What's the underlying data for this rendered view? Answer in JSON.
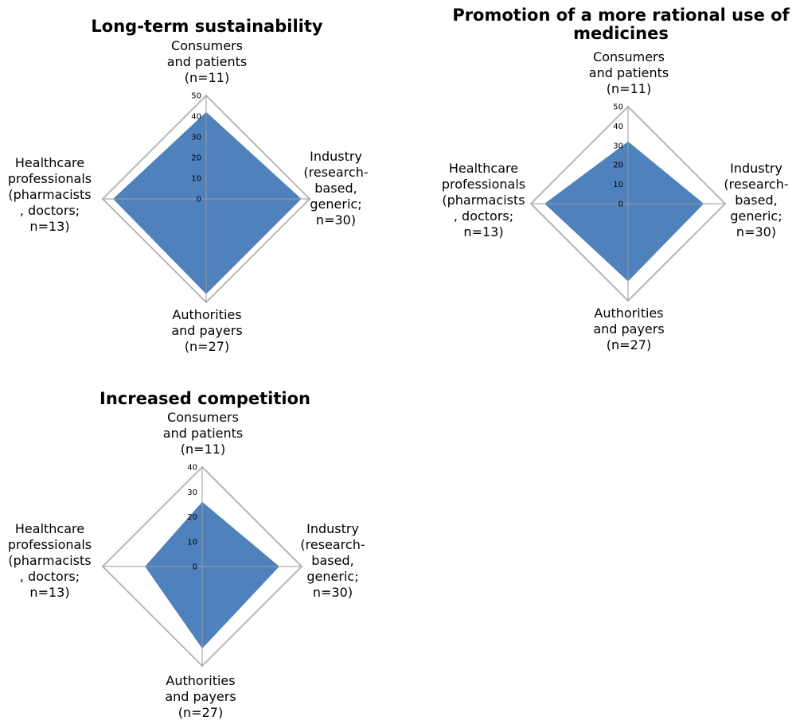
{
  "chart_data": [
    {
      "type": "radar",
      "title": [
        "Long-term sustainability"
      ],
      "axes": [
        [
          "Consumers",
          "and patients",
          "(n=11)"
        ],
        [
          "Industry",
          "(research-",
          "based,",
          "generic;",
          "n=30)"
        ],
        [
          "Authorities",
          "and payers",
          "(n=27)"
        ],
        [
          "Healthcare",
          "professionals",
          "(pharmacists",
          ", doctors;",
          "n=13)"
        ]
      ],
      "ticks": [
        "0",
        "10",
        "20",
        "30",
        "40",
        "50"
      ],
      "range": [
        0,
        50
      ],
      "series": [
        {
          "values": [
            42,
            46,
            46,
            45
          ],
          "color": "#4f81bd"
        }
      ]
    },
    {
      "type": "radar",
      "title": [
        "Promotion of a more rational use of",
        "medicines"
      ],
      "axes": [
        [
          "Consumers",
          "and patients",
          "(n=11)"
        ],
        [
          "Industry",
          "(research-",
          "based,",
          "generic;",
          "n=30)"
        ],
        [
          "Authorities",
          "and payers",
          "(n=27)"
        ],
        [
          "Healthcare",
          "professionals",
          "(pharmacists",
          ", doctors;",
          "n=13)"
        ]
      ],
      "ticks": [
        "0",
        "10",
        "20",
        "30",
        "40",
        "50"
      ],
      "range": [
        0,
        50
      ],
      "series": [
        {
          "values": [
            32,
            39,
            40,
            43
          ],
          "color": "#4f81bd"
        }
      ]
    },
    {
      "type": "radar",
      "title": [
        "Increased competition"
      ],
      "axes": [
        [
          "Consumers",
          "and patients",
          "(n=11)"
        ],
        [
          "Industry",
          "(research-",
          "based,",
          "generic;",
          "n=30)"
        ],
        [
          "Authorities",
          "and payers",
          "(n=27)"
        ],
        [
          "Healthcare",
          "professionals",
          "(pharmacists",
          ", doctors;",
          "n=13)"
        ]
      ],
      "ticks": [
        "0",
        "10",
        "20",
        "30",
        "40"
      ],
      "range": [
        0,
        40
      ],
      "series": [
        {
          "values": [
            26,
            31,
            33,
            23
          ],
          "color": "#4f81bd"
        }
      ]
    }
  ]
}
